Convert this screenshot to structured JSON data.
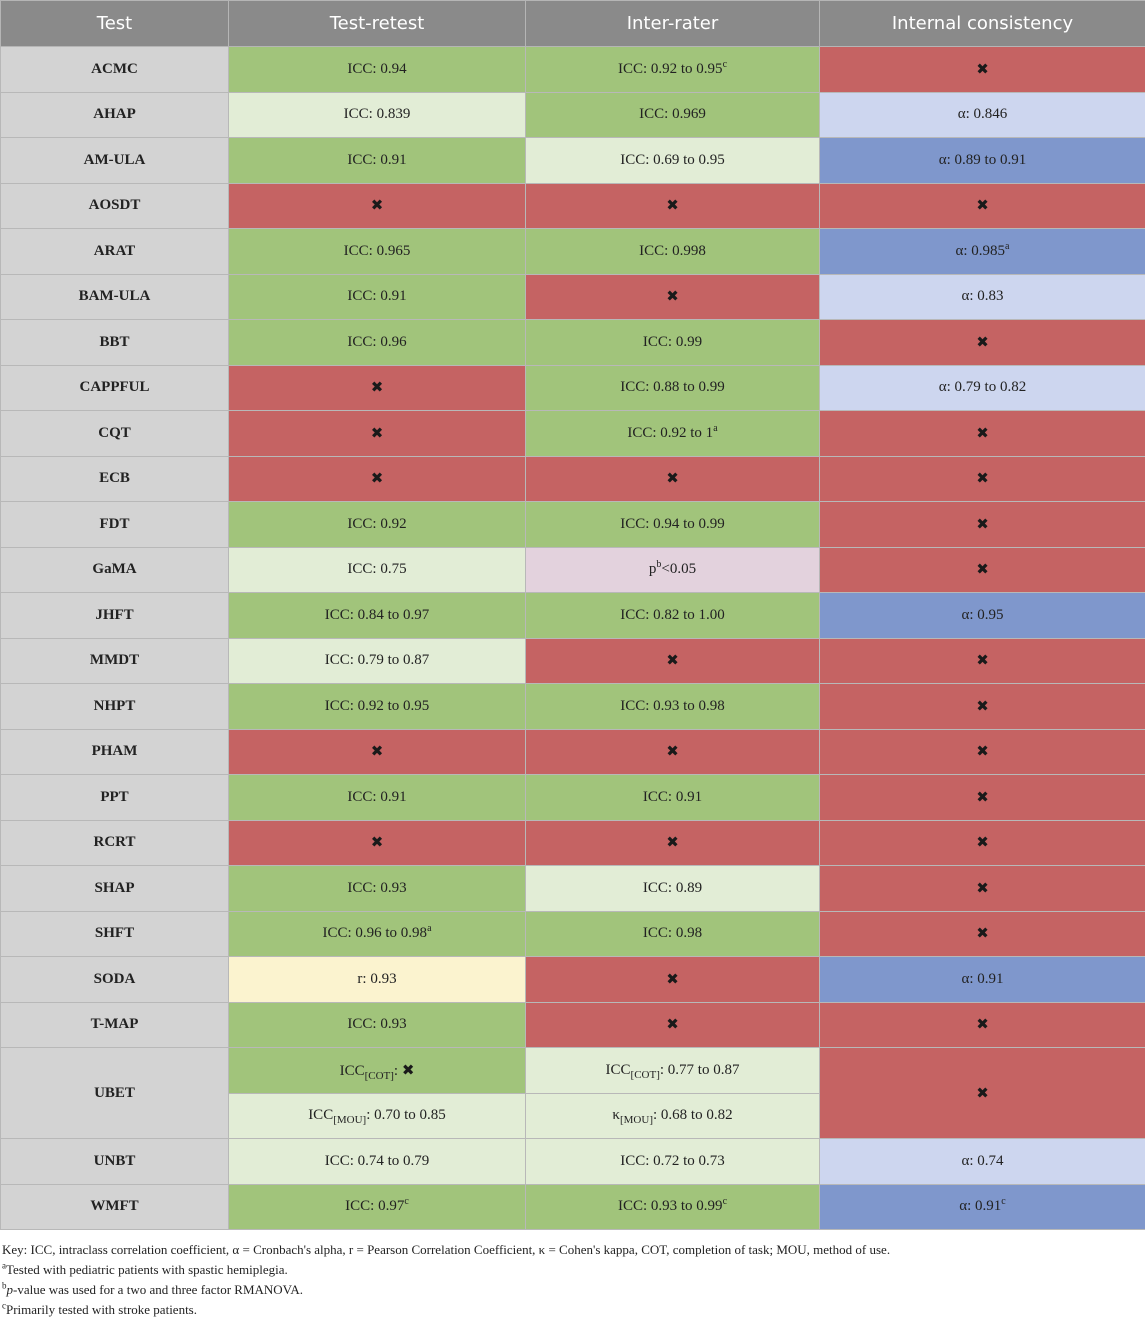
{
  "headers": [
    "Test",
    "Test-retest",
    "Inter-rater",
    "Internal consistency"
  ],
  "icons": {
    "none": "x-mark-icon"
  },
  "rows": [
    {
      "name": "ACMC",
      "cells": [
        {
          "status": "good",
          "text": "ICC: 0.94"
        },
        {
          "status": "good",
          "text": "ICC: 0.92 to 0.95",
          "sup": "c"
        },
        {
          "status": "none",
          "icon": "x-mark"
        }
      ]
    },
    {
      "name": "AHAP",
      "cells": [
        {
          "status": "light",
          "text": "ICC: 0.839"
        },
        {
          "status": "good",
          "text": "ICC: 0.969"
        },
        {
          "status": "blue-light",
          "text": "α: 0.846"
        }
      ]
    },
    {
      "name": "AM-ULA",
      "cells": [
        {
          "status": "good",
          "text": "ICC: 0.91"
        },
        {
          "status": "light",
          "text": "ICC: 0.69 to 0.95"
        },
        {
          "status": "blue-dark",
          "text": "α: 0.89 to 0.91"
        }
      ]
    },
    {
      "name": "AOSDT",
      "cells": [
        {
          "status": "none",
          "icon": "x-mark"
        },
        {
          "status": "none",
          "icon": "x-mark"
        },
        {
          "status": "none",
          "icon": "x-mark"
        }
      ]
    },
    {
      "name": "ARAT",
      "cells": [
        {
          "status": "good",
          "text": "ICC: 0.965"
        },
        {
          "status": "good",
          "text": "ICC: 0.998"
        },
        {
          "status": "blue-dark",
          "text": "α: 0.985",
          "sup": "a"
        }
      ]
    },
    {
      "name": "BAM-ULA",
      "cells": [
        {
          "status": "good",
          "text": "ICC: 0.91"
        },
        {
          "status": "none",
          "icon": "x-mark"
        },
        {
          "status": "blue-light",
          "text": "α: 0.83"
        }
      ]
    },
    {
      "name": "BBT",
      "cells": [
        {
          "status": "good",
          "text": "ICC: 0.96"
        },
        {
          "status": "good",
          "text": "ICC: 0.99"
        },
        {
          "status": "none",
          "icon": "x-mark"
        }
      ]
    },
    {
      "name": "CAPPFUL",
      "cells": [
        {
          "status": "none",
          "icon": "x-mark"
        },
        {
          "status": "good",
          "text": "ICC: 0.88 to 0.99"
        },
        {
          "status": "blue-light",
          "text": "α: 0.79 to 0.82"
        }
      ]
    },
    {
      "name": "CQT",
      "cells": [
        {
          "status": "none",
          "icon": "x-mark"
        },
        {
          "status": "good",
          "text": "ICC: 0.92 to 1",
          "sup": "a"
        },
        {
          "status": "none",
          "icon": "x-mark"
        }
      ]
    },
    {
      "name": "ECB",
      "cells": [
        {
          "status": "none",
          "icon": "x-mark"
        },
        {
          "status": "none",
          "icon": "x-mark"
        },
        {
          "status": "none",
          "icon": "x-mark"
        }
      ]
    },
    {
      "name": "FDT",
      "cells": [
        {
          "status": "good",
          "text": "ICC: 0.92"
        },
        {
          "status": "good",
          "text": "ICC: 0.94 to 0.99"
        },
        {
          "status": "none",
          "icon": "x-mark"
        }
      ]
    },
    {
      "name": "GaMA",
      "cells": [
        {
          "status": "light",
          "text": "ICC: 0.75"
        },
        {
          "status": "pink",
          "text": "p",
          "sup": "b",
          "text2": "<0.05"
        },
        {
          "status": "none",
          "icon": "x-mark"
        }
      ]
    },
    {
      "name": "JHFT",
      "cells": [
        {
          "status": "good",
          "text": "ICC: 0.84 to 0.97"
        },
        {
          "status": "good",
          "text": "ICC: 0.82 to 1.00"
        },
        {
          "status": "blue-dark",
          "text": "α: 0.95"
        }
      ]
    },
    {
      "name": "MMDT",
      "cells": [
        {
          "status": "light",
          "text": "ICC: 0.79 to 0.87"
        },
        {
          "status": "none",
          "icon": "x-mark"
        },
        {
          "status": "none",
          "icon": "x-mark"
        }
      ]
    },
    {
      "name": "NHPT",
      "cells": [
        {
          "status": "good",
          "text": "ICC: 0.92 to 0.95"
        },
        {
          "status": "good",
          "text": "ICC: 0.93 to 0.98"
        },
        {
          "status": "none",
          "icon": "x-mark"
        }
      ]
    },
    {
      "name": "PHAM",
      "cells": [
        {
          "status": "none",
          "icon": "x-mark"
        },
        {
          "status": "none",
          "icon": "x-mark"
        },
        {
          "status": "none",
          "icon": "x-mark"
        }
      ]
    },
    {
      "name": "PPT",
      "cells": [
        {
          "status": "good",
          "text": "ICC: 0.91"
        },
        {
          "status": "good",
          "text": "ICC: 0.91"
        },
        {
          "status": "none",
          "icon": "x-mark"
        }
      ]
    },
    {
      "name": "RCRT",
      "cells": [
        {
          "status": "none",
          "icon": "x-mark"
        },
        {
          "status": "none",
          "icon": "x-mark"
        },
        {
          "status": "none",
          "icon": "x-mark"
        }
      ]
    },
    {
      "name": "SHAP",
      "cells": [
        {
          "status": "good",
          "text": "ICC: 0.93"
        },
        {
          "status": "light",
          "text": "ICC: 0.89"
        },
        {
          "status": "none",
          "icon": "x-mark"
        }
      ]
    },
    {
      "name": "SHFT",
      "cells": [
        {
          "status": "good",
          "text": "ICC: 0.96 to 0.98",
          "sup": "a"
        },
        {
          "status": "good",
          "text": "ICC: 0.98"
        },
        {
          "status": "none",
          "icon": "x-mark"
        }
      ]
    },
    {
      "name": "SODA",
      "cells": [
        {
          "status": "yellow",
          "text": "r: 0.93"
        },
        {
          "status": "none",
          "icon": "x-mark"
        },
        {
          "status": "blue-dark",
          "text": "α: 0.91"
        }
      ]
    },
    {
      "name": "T-MAP",
      "cells": [
        {
          "status": "good",
          "text": "ICC: 0.93"
        },
        {
          "status": "none",
          "icon": "x-mark"
        },
        {
          "status": "none",
          "icon": "x-mark"
        }
      ]
    },
    {
      "name": "UBET",
      "span": 2,
      "cells": [
        {
          "status": "good",
          "text": "ICC",
          "sub": "[COT]",
          "text2": ": ",
          "icon": "x-mark"
        },
        {
          "status": "light",
          "text": "ICC",
          "sub": "[COT]",
          "text2": ": 0.77 to 0.87"
        },
        {
          "status": "none",
          "icon": "x-mark",
          "rowspan": 2
        }
      ]
    },
    {
      "continuation": true,
      "cells": [
        {
          "status": "light",
          "text": "ICC",
          "sub": "[MOU]",
          "text2": ": 0.70 to 0.85"
        },
        {
          "status": "light",
          "text": "κ",
          "sub": "[MOU]",
          "text2": ": 0.68 to 0.82"
        }
      ]
    },
    {
      "name": "UNBT",
      "cells": [
        {
          "status": "light",
          "text": "ICC: 0.74 to 0.79"
        },
        {
          "status": "light",
          "text": "ICC: 0.72 to 0.73"
        },
        {
          "status": "blue-light",
          "text": "α: 0.74"
        }
      ]
    },
    {
      "name": "WMFT",
      "cells": [
        {
          "status": "good",
          "text": "ICC: 0.97",
          "sup": "c"
        },
        {
          "status": "good",
          "text": "ICC: 0.93 to 0.99",
          "sup": "c"
        },
        {
          "status": "blue-dark",
          "text": "α: 0.91",
          "sup": "c"
        }
      ]
    }
  ],
  "notes": {
    "key": "Key: ICC, intraclass correlation coefficient, α = Cronbach's alpha, r = Pearson Correlation Coefficient, κ = Cohen's kappa, COT, completion of task; MOU, method of use.",
    "a_mark": "a",
    "a": "Tested with pediatric patients with spastic hemiplegia.",
    "b_mark": "b",
    "b_italic": "p",
    "b": "-value was used for a two and three factor RMANOVA.",
    "c_mark": "c",
    "c": "Primarily tested with stroke patients."
  }
}
